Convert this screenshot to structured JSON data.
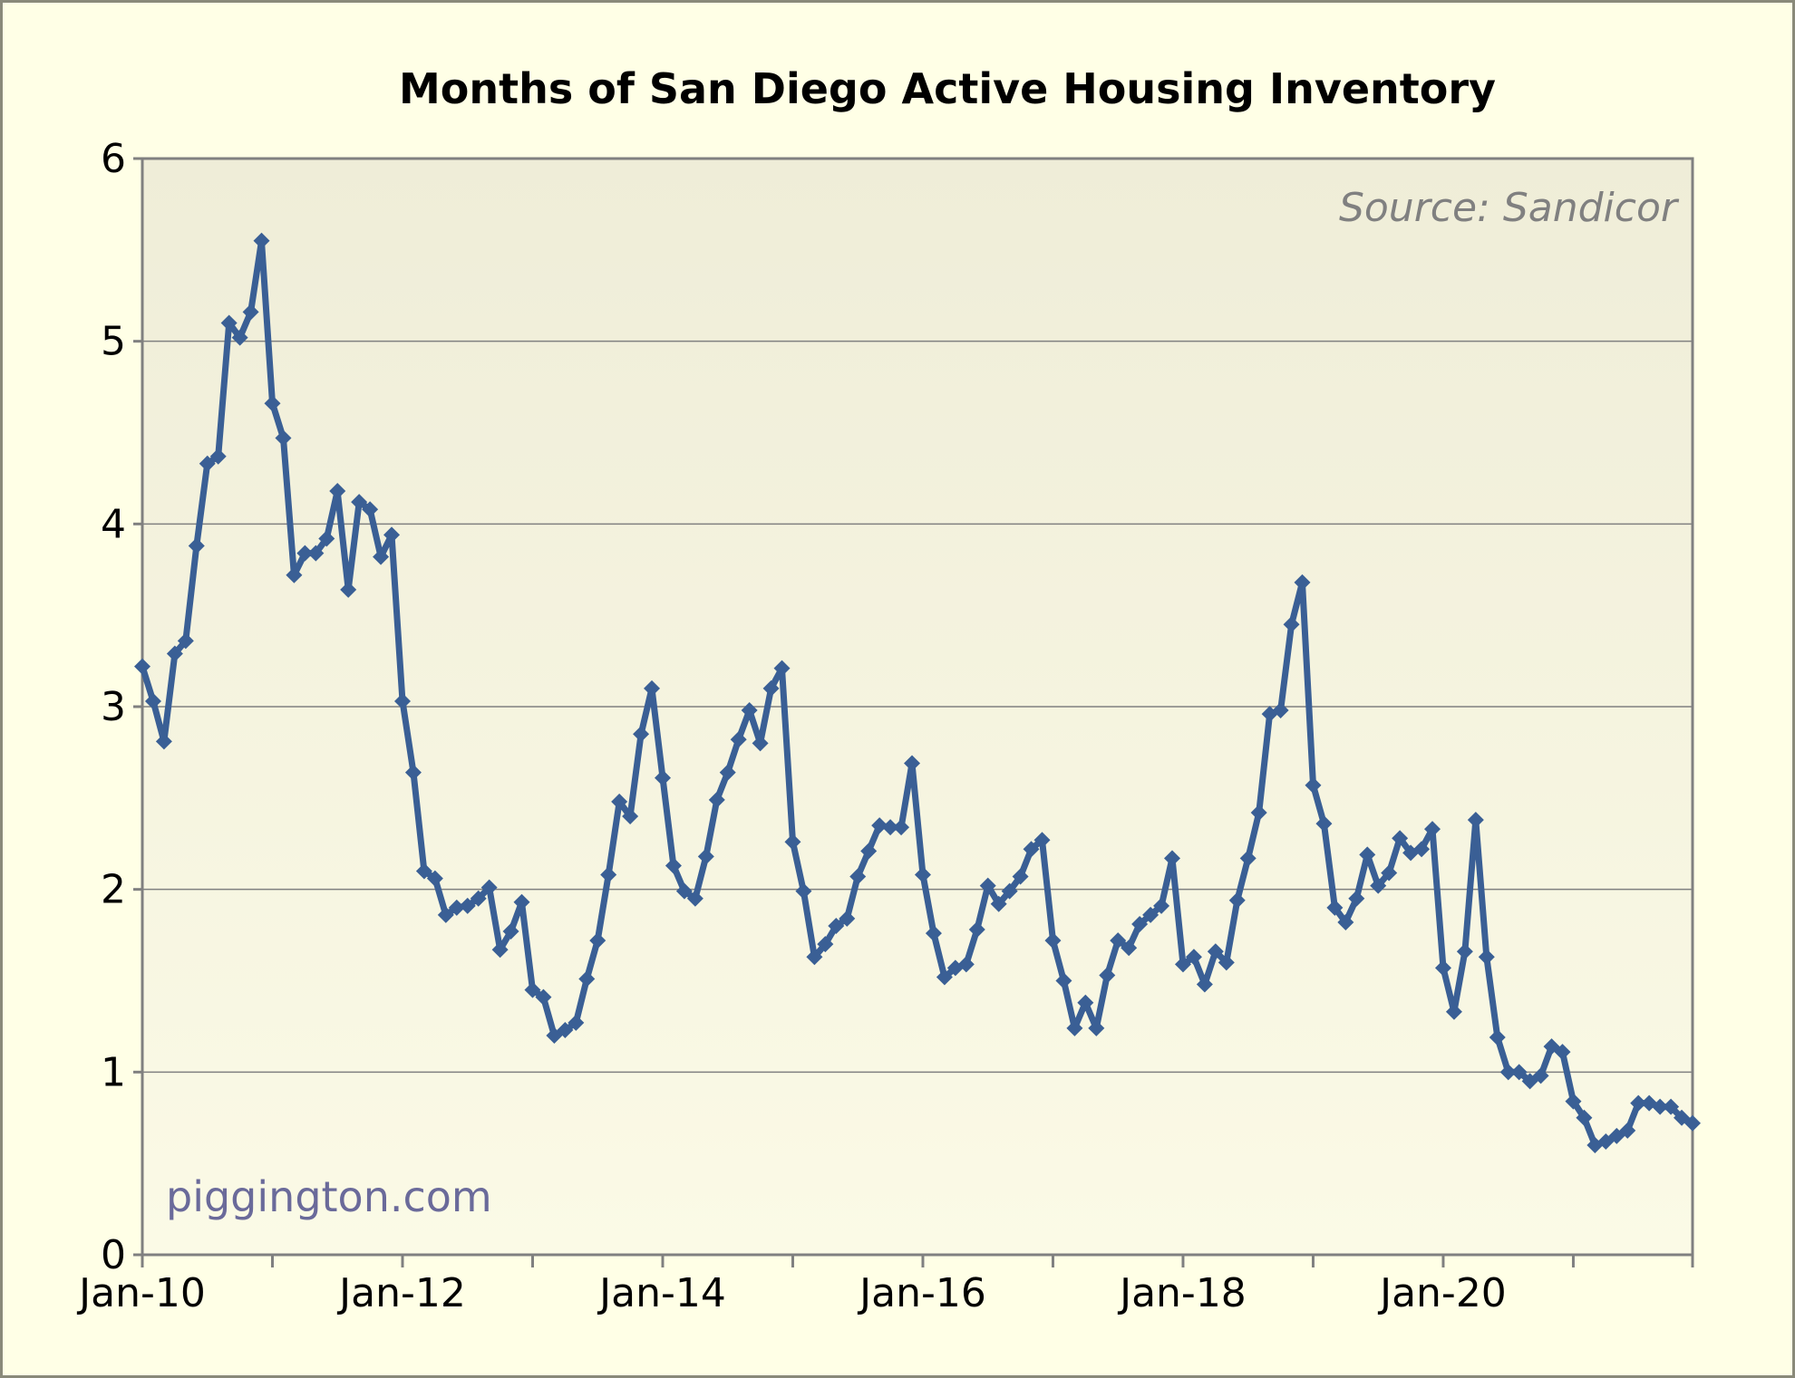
{
  "chart_data": {
    "type": "line",
    "title": "Months of San Diego Active Housing Inventory",
    "source_note": "Source: Sandicor",
    "watermark": "piggington.com",
    "xlabel": "",
    "ylabel": "",
    "ylim": [
      0,
      6
    ],
    "yticks": [
      "0",
      "1",
      "2",
      "3",
      "4",
      "5",
      "6"
    ],
    "xticks": [
      "Jan-10",
      "Jan-12",
      "Jan-14",
      "Jan-16",
      "Jan-18",
      "Jan-20"
    ],
    "x_start": "Jan-10",
    "x_end": "Dec-21",
    "grid": true,
    "legend": "none",
    "colors": {
      "line": "#3a5f95",
      "plot_bg_top": "#efedd8",
      "plot_bg_bottom": "#fbfae6",
      "page_bg": "#ffffe6"
    },
    "series": [
      {
        "values": [
          3.22,
          3.03,
          2.81,
          3.29,
          3.36,
          3.88,
          4.33,
          4.37,
          5.1,
          5.02,
          5.16,
          5.55,
          4.66,
          4.47,
          3.72,
          3.84,
          3.84,
          3.92,
          4.18,
          3.64,
          4.12,
          4.08,
          3.82,
          3.94,
          3.03,
          2.64,
          2.1,
          2.06,
          1.86,
          1.9,
          1.91,
          1.95,
          2.01,
          1.67,
          1.77,
          1.93,
          1.45,
          1.41,
          1.2,
          1.23,
          1.27,
          1.51,
          1.72,
          2.08,
          2.48,
          2.4,
          2.85,
          3.1,
          2.61,
          2.13,
          1.99,
          1.95,
          2.18,
          2.49,
          2.64,
          2.82,
          2.98,
          2.8,
          3.1,
          3.21,
          2.26,
          1.99,
          1.63,
          1.7,
          1.8,
          1.84,
          2.07,
          2.21,
          2.35,
          2.34,
          2.34,
          2.69,
          2.08,
          1.76,
          1.52,
          1.57,
          1.59,
          1.78,
          2.02,
          1.92,
          1.99,
          2.07,
          2.22,
          2.27,
          1.72,
          1.5,
          1.24,
          1.38,
          1.24,
          1.53,
          1.72,
          1.68,
          1.81,
          1.86,
          1.91,
          2.17,
          1.59,
          1.63,
          1.48,
          1.66,
          1.6,
          1.94,
          2.17,
          2.42,
          2.96,
          2.98,
          3.45,
          3.68,
          2.57,
          2.36,
          1.9,
          1.82,
          1.95,
          2.19,
          2.02,
          2.09,
          2.28,
          2.2,
          2.22,
          2.33,
          1.57,
          1.33,
          1.66,
          2.38,
          1.63,
          1.19,
          1.0,
          1.0,
          0.95,
          0.98,
          1.14,
          1.11,
          0.84,
          0.75,
          0.6,
          0.62,
          0.65,
          0.68,
          0.83,
          0.83,
          0.81,
          0.81,
          0.75,
          0.72
        ]
      }
    ]
  }
}
